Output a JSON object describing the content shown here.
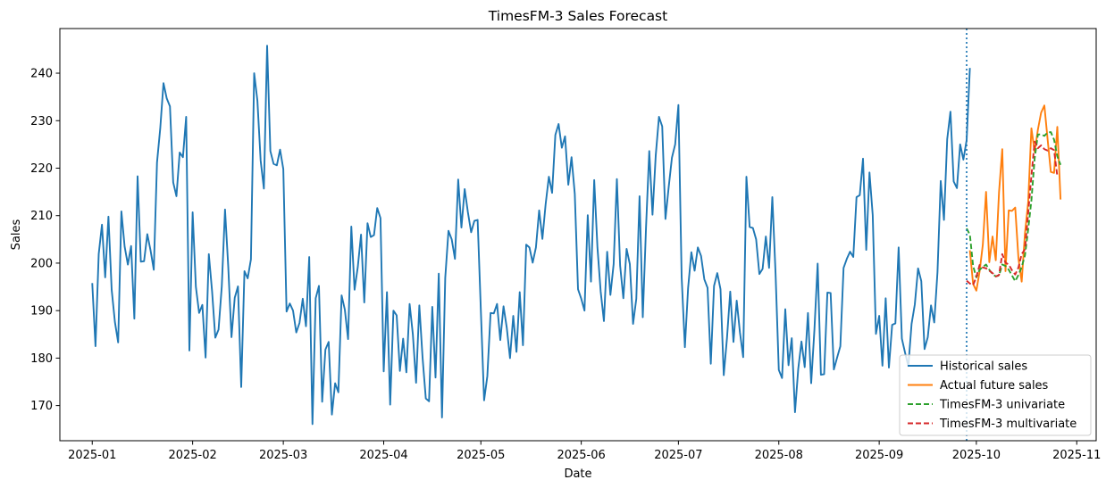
{
  "chart_data": {
    "type": "line",
    "title": "TimesFM-3 Sales Forecast",
    "xlabel": "Date",
    "ylabel": "Sales",
    "xlim": [
      "2024-12-22",
      "2025-11-07"
    ],
    "ylim": [
      162.6,
      249.4
    ],
    "x_ticks": [
      "2025-01-01",
      "2025-02-01",
      "2025-03-01",
      "2025-04-01",
      "2025-05-01",
      "2025-06-01",
      "2025-07-01",
      "2025-08-01",
      "2025-09-01",
      "2025-10-01",
      "2025-11-01"
    ],
    "x_tick_labels": [
      "2025-01",
      "2025-02",
      "2025-03",
      "2025-04",
      "2025-05",
      "2025-06",
      "2025-07",
      "2025-08",
      "2025-09",
      "2025-10",
      "2025-11"
    ],
    "y_ticks": [
      170,
      180,
      190,
      200,
      210,
      220,
      230,
      240
    ],
    "grid": false,
    "legend_position": "bottom-right",
    "vline": {
      "x": "2025-09-28",
      "color": "#1f77b4",
      "style": "dotted"
    },
    "series": [
      {
        "name": "Historical sales",
        "color": "#1f77b4",
        "dash": "solid",
        "start": "2025-01-01",
        "values": [
          195.8,
          182.5,
          201.9,
          208.1,
          197.0,
          209.8,
          194.4,
          187.6,
          183.3,
          210.9,
          203.5,
          199.7,
          203.6,
          188.3,
          218.3,
          200.3,
          200.4,
          206.1,
          202.7,
          198.6,
          221.2,
          228.4,
          237.9,
          234.7,
          233.0,
          217.0,
          214.1,
          223.3,
          222.3,
          230.8,
          181.6,
          210.7,
          195.0,
          189.5,
          191.2,
          180.1,
          201.9,
          194.1,
          184.3,
          186.0,
          195.1,
          211.3,
          199.2,
          184.4,
          192.7,
          195.1,
          173.9,
          198.3,
          196.8,
          200.8,
          240.0,
          234.2,
          221.6,
          215.7,
          245.8,
          223.6,
          220.9,
          220.6,
          223.9,
          219.8,
          189.8,
          191.5,
          190.0,
          185.4,
          187.4,
          192.5,
          186.7,
          201.3,
          166.1,
          192.6,
          195.2,
          170.8,
          181.8,
          183.4,
          168.1,
          174.7,
          172.8,
          193.2,
          190.2,
          184.0,
          207.7,
          194.4,
          199.2,
          206.0,
          191.7,
          208.4,
          205.5,
          205.9,
          211.6,
          209.5,
          177.2,
          193.9,
          170.2,
          190.0,
          189.0,
          177.3,
          184.1,
          177.0,
          191.4,
          185.0,
          174.8,
          191.1,
          180.1,
          171.5,
          170.9,
          190.8,
          175.9,
          197.8,
          167.5,
          196.9,
          206.8,
          205.0,
          200.9,
          217.6,
          207.5,
          215.6,
          210.7,
          206.5,
          208.9,
          209.1,
          190.0,
          171.1,
          176.2,
          189.5,
          189.4,
          191.4,
          183.8,
          190.9,
          186.4,
          180.0,
          188.9,
          181.3,
          193.9,
          182.7,
          203.9,
          203.3,
          200.1,
          203.3,
          211.1,
          205.1,
          212.4,
          218.2,
          214.8,
          227.0,
          229.3,
          224.3,
          226.7,
          216.5,
          222.3,
          214.6,
          194.5,
          192.5,
          190.0,
          210.1,
          196.1,
          217.5,
          203.3,
          194.0,
          187.8,
          202.4,
          193.3,
          199.8,
          217.7,
          199.5,
          192.6,
          203.0,
          199.8,
          187.2,
          192.5,
          214.1,
          188.6,
          207.5,
          223.6,
          210.2,
          222.7,
          230.8,
          228.8,
          209.3,
          216.0,
          222.2,
          225.0,
          233.3,
          197.1,
          182.3,
          194.8,
          202.3,
          198.4,
          203.3,
          201.5,
          196.6,
          194.8,
          178.8,
          195.2,
          197.9,
          194.5,
          176.4,
          184.2,
          194.0,
          183.4,
          192.1,
          185.4,
          180.2,
          218.2,
          207.6,
          207.4,
          205.0,
          197.7,
          198.8,
          205.6,
          199.0,
          213.9,
          197.8,
          177.5,
          175.8,
          190.3,
          178.5,
          184.2,
          168.6,
          177.7,
          183.5,
          178.1,
          189.5,
          174.7,
          186.0,
          199.9,
          176.5,
          176.6,
          193.8,
          193.7,
          177.6,
          180.1,
          182.5,
          199.0,
          200.9,
          202.4,
          201.3,
          213.9,
          214.3,
          222.0,
          202.8,
          219.1,
          210.1,
          185.1,
          188.9,
          178.4,
          192.6,
          178.0,
          187.0,
          187.3,
          203.3,
          184.1,
          181.1,
          178.3,
          187.2,
          191.3,
          198.9,
          196.2,
          181.9,
          184.4,
          191.1,
          187.5,
          198.1,
          217.3,
          209.1,
          226.1,
          231.9,
          217.2,
          215.8,
          225.0,
          221.8,
          225.9,
          241.1
        ]
      },
      {
        "name": "Actual future sales",
        "color": "#ff7f0e",
        "dash": "solid",
        "start": "2025-09-29",
        "values": [
          202.7,
          195.6,
          194.2,
          198.2,
          203.9,
          215.0,
          200.2,
          205.6,
          200.6,
          214.9,
          224.0,
          198.3,
          211.1,
          211.0,
          211.7,
          201.0,
          196.1,
          206.2,
          212.8,
          228.4,
          223.4,
          228.1,
          231.7,
          233.2,
          226.1,
          219.2,
          219.0,
          228.7,
          213.4
        ]
      },
      {
        "name": "TimesFM-3 univariate",
        "color": "#2ca02c",
        "dash": "dashed",
        "start": "2025-09-28",
        "values": [
          207.3,
          206.0,
          199.4,
          197.0,
          198.6,
          199.2,
          199.7,
          198.6,
          197.7,
          197.2,
          197.4,
          199.7,
          199.4,
          198.6,
          197.4,
          196.2,
          197.5,
          199.2,
          201.6,
          207.1,
          213.2,
          222.0,
          227.1,
          227.1,
          226.8,
          227.5,
          227.6,
          226.0,
          222.5,
          220.7
        ]
      },
      {
        "name": "TimesFM-3 multivariate",
        "color": "#d62728",
        "dash": "dashed",
        "start": "2025-09-28",
        "values": [
          196.3,
          195.7,
          195.4,
          197.1,
          199.6,
          199.1,
          198.9,
          198.4,
          197.9,
          197.2,
          197.5,
          201.9,
          200.1,
          199.7,
          198.5,
          197.6,
          199.1,
          201.9,
          202.9,
          210.5,
          218.4,
          225.6,
          224.2,
          224.8,
          224.0,
          223.7,
          224.2,
          223.8,
          218.3
        ]
      }
    ]
  }
}
